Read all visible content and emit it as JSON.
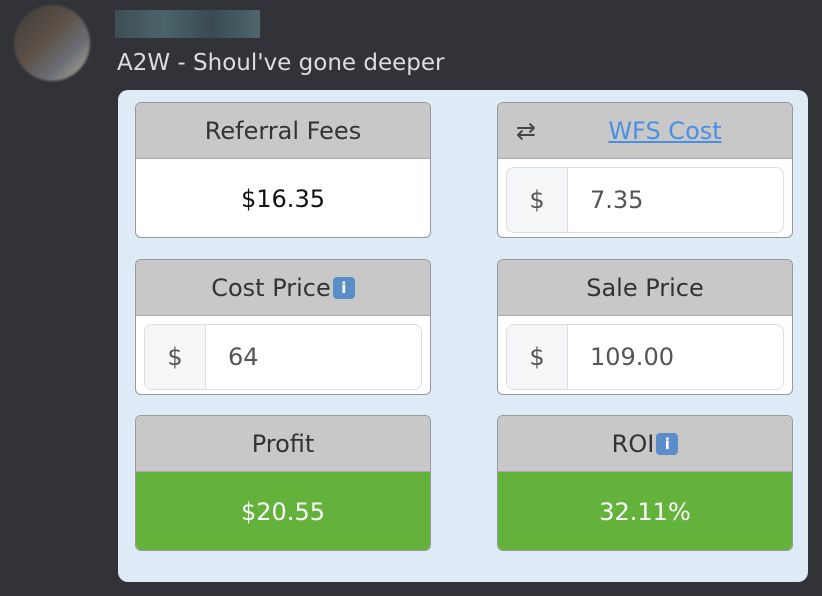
{
  "message": {
    "text": "A2W - Shoul've gone deeper"
  },
  "cards": {
    "referral": {
      "title": "Referral Fees",
      "value": "$16.35"
    },
    "wfs": {
      "title": "WFS Cost",
      "prefix": "$",
      "value": "7.35",
      "icon": "swap-arrows-icon"
    },
    "cost": {
      "title": "Cost Price",
      "info": "i",
      "prefix": "$",
      "value": "64"
    },
    "sale": {
      "title": "Sale Price",
      "prefix": "$",
      "value": "109.00"
    },
    "profit": {
      "title": "Profit",
      "value": "$20.55"
    },
    "roi": {
      "title": "ROI",
      "info": "i",
      "value": "32.11%"
    }
  },
  "colors": {
    "positive": "#62b23c",
    "link": "#4a90e2"
  }
}
